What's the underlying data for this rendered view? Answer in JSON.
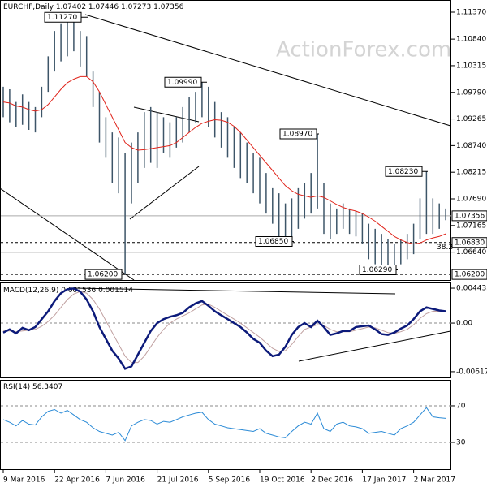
{
  "chart_data": {
    "type": "ohlc",
    "title": "EURCHF,Daily",
    "header_values": [
      1.07402,
      1.07446,
      1.07273,
      1.07356
    ],
    "watermark": "ActionForex.com",
    "ylim": [
      1.0609,
      1.1161
    ],
    "yticks": [
      {
        "value": 1.1137,
        "label": "1.11370"
      },
      {
        "value": 1.1084,
        "label": "1.10840"
      },
      {
        "value": 1.10315,
        "label": "1.10315"
      },
      {
        "value": 1.0979,
        "label": "1.09790"
      },
      {
        "value": 1.09265,
        "label": "1.09265"
      },
      {
        "value": 1.0874,
        "label": "1.08740"
      },
      {
        "value": 1.08215,
        "label": "1.08215"
      },
      {
        "value": 1.0769,
        "label": "1.07690"
      },
      {
        "value": 1.07165,
        "label": "1.07165"
      },
      {
        "value": 1.0664,
        "label": "1.06640"
      }
    ],
    "price_levels": [
      {
        "value": 1.07356,
        "style": "solid"
      },
      {
        "value": 1.0683,
        "label": "1.06830",
        "style": "dashed"
      },
      {
        "value": 1.062,
        "label": "1.06200",
        "style": "dashed"
      }
    ],
    "fib_ratio": 38.2,
    "fib_price": 1.0664,
    "annotations": [
      {
        "value": 1.1127,
        "label": "1.11270"
      },
      {
        "value": 1.0999,
        "label": "1.09990"
      },
      {
        "value": 1.0897,
        "label": "1.08970"
      },
      {
        "value": 1.0823,
        "label": "1.08230"
      },
      {
        "value": 1.0685,
        "label": "1.06850"
      },
      {
        "value": 1.0629,
        "label": "1.06290"
      },
      {
        "value": 1.062,
        "label": "1.06200"
      }
    ],
    "xticks": [
      {
        "value": 0,
        "label": "9 Mar 2016"
      },
      {
        "value": 8,
        "label": "22 Apr 2016"
      },
      {
        "value": 16,
        "label": "7 Jun 2016"
      },
      {
        "value": 24,
        "label": "21 Jul 2016"
      },
      {
        "value": 32,
        "label": "5 Sep 2016"
      },
      {
        "value": 40,
        "label": "19 Oct 2016"
      },
      {
        "value": 48,
        "label": "2 Dec 2016"
      },
      {
        "value": 56,
        "label": "17 Jan 2017"
      },
      {
        "value": 64,
        "label": "2 Mar 2017"
      }
    ],
    "bar_color": "#3d5568",
    "ma_color": "#e0241b",
    "price": {
      "high": [
        1.099,
        1.0985,
        1.096,
        1.0975,
        1.096,
        1.095,
        1.099,
        1.105,
        1.11,
        1.1115,
        1.1127,
        1.112,
        1.11,
        1.109,
        1.102,
        1.098,
        1.093,
        1.09,
        1.089,
        1.086,
        1.088,
        1.09,
        1.094,
        1.095,
        1.094,
        1.093,
        1.092,
        1.093,
        1.095,
        1.097,
        1.098,
        1.0999,
        1.099,
        1.096,
        1.094,
        1.093,
        1.091,
        1.09,
        1.088,
        1.086,
        1.085,
        1.082,
        1.079,
        1.078,
        1.076,
        1.077,
        1.079,
        1.08,
        1.082,
        1.0897,
        1.08,
        1.076,
        1.075,
        1.076,
        1.075,
        1.0745,
        1.074,
        1.072,
        1.071,
        1.07,
        1.069,
        1.068,
        1.069,
        1.07,
        1.072,
        1.077,
        1.0823,
        1.077,
        1.076,
        1.075
      ],
      "low": [
        1.093,
        1.092,
        1.091,
        1.0915,
        1.0905,
        1.09,
        1.093,
        1.098,
        1.102,
        1.104,
        1.105,
        1.106,
        1.103,
        1.101,
        1.095,
        1.088,
        1.085,
        1.08,
        1.078,
        1.062,
        1.076,
        1.08,
        1.083,
        1.084,
        1.083,
        1.086,
        1.085,
        1.087,
        1.088,
        1.09,
        1.092,
        1.093,
        1.091,
        1.089,
        1.087,
        1.085,
        1.083,
        1.081,
        1.08,
        1.078,
        1.076,
        1.074,
        1.072,
        1.069,
        1.0685,
        1.069,
        1.071,
        1.073,
        1.074,
        1.075,
        1.07,
        1.069,
        1.07,
        1.071,
        1.07,
        1.0695,
        1.068,
        1.065,
        1.064,
        1.0635,
        1.063,
        1.0629,
        1.064,
        1.065,
        1.066,
        1.069,
        1.07,
        1.07,
        1.071,
        1.0727
      ]
    },
    "ma": [
      1.096,
      1.0958,
      1.0952,
      1.095,
      1.0945,
      1.0942,
      1.0945,
      1.0955,
      1.097,
      1.0985,
      1.0998,
      1.1005,
      1.101,
      1.101,
      1.1,
      1.098,
      1.0955,
      1.093,
      1.0905,
      1.088,
      1.087,
      1.0865,
      1.0866,
      1.0868,
      1.087,
      1.0872,
      1.0874,
      1.088,
      1.089,
      1.09,
      1.091,
      1.0918,
      1.0922,
      1.0925,
      1.0924,
      1.092,
      1.0912,
      1.09,
      1.0885,
      1.087,
      1.0855,
      1.084,
      1.0825,
      1.081,
      1.0795,
      1.0785,
      1.0778,
      1.0775,
      1.0772,
      1.0775,
      1.0772,
      1.0765,
      1.0758,
      1.0752,
      1.0748,
      1.0745,
      1.074,
      1.0733,
      1.0725,
      1.0715,
      1.0705,
      1.0695,
      1.0688,
      1.0683,
      1.068,
      1.0682,
      1.0688,
      1.0692,
      1.0695,
      1.07
    ],
    "macd": {
      "title": "MACD(12,26,9)",
      "header_values": [
        0.001536,
        0.001514
      ],
      "ylim": [
        -0.0069,
        0.00516
      ],
      "yticks": [
        0.004435,
        {
          "value": 0,
          "label": "0.00"
        },
        -0.00617
      ],
      "color": "#0c1a7a",
      "signal_color": "#c0a0a0",
      "values": [
        -0.0012,
        -0.0008,
        -0.0013,
        -0.0006,
        -0.0009,
        -0.0005,
        0.0005,
        0.0015,
        0.0028,
        0.0038,
        0.0043,
        0.0044,
        0.004,
        0.003,
        0.0015,
        -0.0005,
        -0.002,
        -0.0035,
        -0.0045,
        -0.0058,
        -0.0055,
        -0.004,
        -0.0025,
        -0.001,
        0,
        0.0005,
        0.0008,
        0.001,
        0.0013,
        0.002,
        0.0025,
        0.0028,
        0.0022,
        0.0015,
        0.001,
        0.0005,
        0,
        -0.0005,
        -0.0012,
        -0.002,
        -0.0025,
        -0.0035,
        -0.0042,
        -0.004,
        -0.003,
        -0.0015,
        -0.0005,
        0,
        -0.0005,
        0.0003,
        -0.0005,
        -0.0015,
        -0.0013,
        -0.001,
        -0.001,
        -0.0005,
        -0.0004,
        -0.0003,
        -0.0008,
        -0.0014,
        -0.0015,
        -0.0012,
        -0.0007,
        -0.0003,
        0.0005,
        0.0015,
        0.002,
        0.0018,
        0.0016,
        0.0015
      ],
      "signal": [
        -0.001,
        -0.001,
        -0.0011,
        -0.001,
        -0.0009,
        -0.0008,
        -0.0004,
        0.0002,
        0.001,
        0.002,
        0.003,
        0.0037,
        0.004,
        0.0038,
        0.003,
        0.0018,
        0.0003,
        -0.0012,
        -0.0027,
        -0.0042,
        -0.005,
        -0.005,
        -0.0042,
        -0.003,
        -0.0018,
        -0.0008,
        0,
        0.0005,
        0.0009,
        0.0013,
        0.0018,
        0.0023,
        0.0024,
        0.002,
        0.0015,
        0.001,
        0.0005,
        0,
        -0.0006,
        -0.0012,
        -0.0018,
        -0.0025,
        -0.0032,
        -0.0036,
        -0.0035,
        -0.0027,
        -0.0017,
        -0.0008,
        -0.0005,
        -0.0002,
        -0.0003,
        -0.0008,
        -0.0011,
        -0.0011,
        -0.0011,
        -0.0009,
        -0.0007,
        -0.0005,
        -0.0006,
        -0.0009,
        -0.0012,
        -0.0013,
        -0.0011,
        -0.0008,
        -0.0002,
        0.0006,
        0.0012,
        0.0015,
        0.0015,
        0.0015
      ]
    },
    "rsi": {
      "title": "RSI(14)",
      "header_value": 56.3407,
      "ylim": [
        0.7,
        98.4
      ],
      "yticks": [
        70,
        30
      ],
      "color": "#2a8ad6",
      "values": [
        55,
        52,
        48,
        54,
        50,
        49,
        58,
        64,
        66,
        62,
        65,
        60,
        55,
        52,
        46,
        42,
        40,
        38,
        41,
        32,
        48,
        52,
        55,
        54,
        50,
        53,
        52,
        55,
        58,
        60,
        62,
        63,
        55,
        50,
        48,
        46,
        45,
        44,
        43,
        42,
        45,
        40,
        38,
        36,
        35,
        42,
        48,
        52,
        50,
        62,
        45,
        42,
        50,
        52,
        48,
        47,
        45,
        40,
        41,
        42,
        40,
        38,
        45,
        48,
        52,
        60,
        68,
        58,
        57,
        56.3407
      ]
    }
  }
}
